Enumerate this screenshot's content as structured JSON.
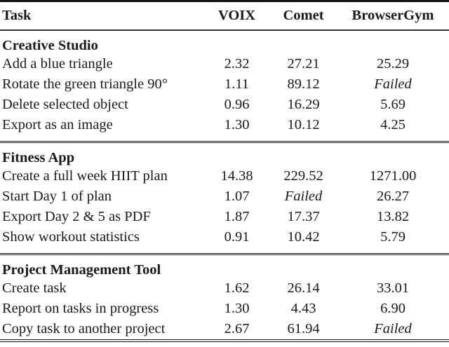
{
  "table": {
    "columns": [
      "Task",
      "VOIX",
      "Comet",
      "BrowserGym"
    ],
    "failed_label": "Failed",
    "sections": [
      {
        "title": "Creative Studio",
        "rows": [
          {
            "task": "Add a blue triangle",
            "values": [
              "2.32",
              "27.21",
              "25.29"
            ]
          },
          {
            "task": "Rotate the green triangle 90°",
            "values": [
              "1.11",
              "89.12",
              "Failed"
            ]
          },
          {
            "task": "Delete selected object",
            "values": [
              "0.96",
              "16.29",
              "5.69"
            ]
          },
          {
            "task": "Export as an image",
            "values": [
              "1.30",
              "10.12",
              "4.25"
            ]
          }
        ]
      },
      {
        "title": "Fitness App",
        "rows": [
          {
            "task": "Create a full week HIIT plan",
            "values": [
              "14.38",
              "229.52",
              "1271.00"
            ]
          },
          {
            "task": "Start Day 1 of plan",
            "values": [
              "1.07",
              "Failed",
              "26.27"
            ]
          },
          {
            "task": "Export Day 2 & 5 as PDF",
            "values": [
              "1.87",
              "17.37",
              "13.82"
            ]
          },
          {
            "task": "Show workout statistics",
            "values": [
              "0.91",
              "10.42",
              "5.79"
            ]
          }
        ]
      },
      {
        "title": "Project Management Tool",
        "rows": [
          {
            "task": "Create task",
            "values": [
              "1.62",
              "26.14",
              "33.01"
            ]
          },
          {
            "task": "Report on tasks in progress",
            "values": [
              "1.30",
              "4.43",
              "6.90"
            ]
          },
          {
            "task": "Copy task to another project",
            "values": [
              "2.67",
              "61.94",
              "Failed"
            ]
          }
        ]
      }
    ]
  },
  "colors": {
    "text": "#1a1a1a",
    "rule": "#111111",
    "header_rule": "#333333",
    "background": "#ffffff"
  }
}
